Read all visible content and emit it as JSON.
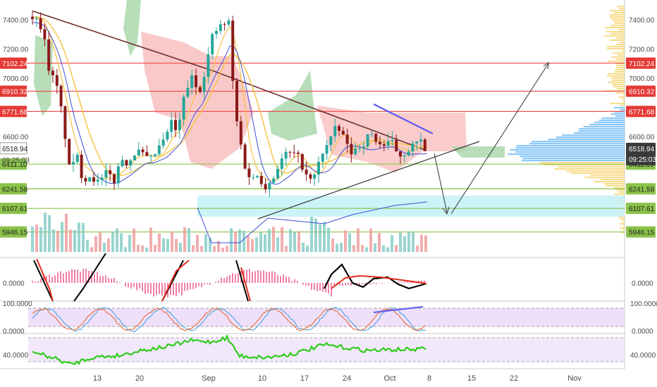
{
  "chart_data": {
    "type": "candlestick",
    "x_axis": {
      "labels": [
        "13",
        "20",
        "Sep",
        "10",
        "17",
        "24",
        "Oct",
        "8",
        "15",
        "22",
        "Nov"
      ]
    },
    "price_axis": {
      "ticks": [
        "7400.00",
        "7200.00",
        "7000.00",
        "6600.00",
        "6411.10"
      ],
      "ylim": [
        5900,
        7560
      ]
    },
    "price_levels": [
      {
        "label": "7102.24",
        "value": 7102.24,
        "color": "#ef5350",
        "style": "horizontal-red"
      },
      {
        "label": "6910.32",
        "value": 6910.32,
        "color": "#ef5350",
        "style": "horizontal-red"
      },
      {
        "label": "6771.68",
        "value": 6771.68,
        "color": "#ef5350",
        "style": "horizontal-red"
      },
      {
        "label": "6411.10",
        "value": 6411.1,
        "color": "#8bc34a",
        "style": "horizontal-green"
      },
      {
        "label": "6241.58",
        "value": 6241.58,
        "color": "#8bc34a",
        "style": "horizontal-green"
      },
      {
        "label": "6107.61",
        "value": 6107.61,
        "color": "#8bc34a",
        "style": "horizontal-green"
      },
      {
        "label": "5946.15",
        "value": 5946.15,
        "color": "#8bc34a",
        "style": "horizontal-green"
      }
    ],
    "last_price": {
      "value": "6518.94",
      "countdown": "09:25:03"
    },
    "macd_panel": {
      "label": "0.0000"
    },
    "stoch_rsi_panel": {
      "labels": [
        "100.0000",
        "0.0000"
      ]
    },
    "rsi_panel": {
      "label": "40.0000"
    },
    "colors": {
      "up": "#26a69a",
      "down": "#8b1a1a",
      "cloud_green": "#a5d6a7",
      "cloud_red": "#f8bbbb",
      "ma_brown": "#6d2e2e",
      "ma_yellow": "#f5c242",
      "blue_line": "#3f4fd6",
      "rsi_green": "#2ecc1a",
      "macd_hist": "#e91e63"
    }
  }
}
